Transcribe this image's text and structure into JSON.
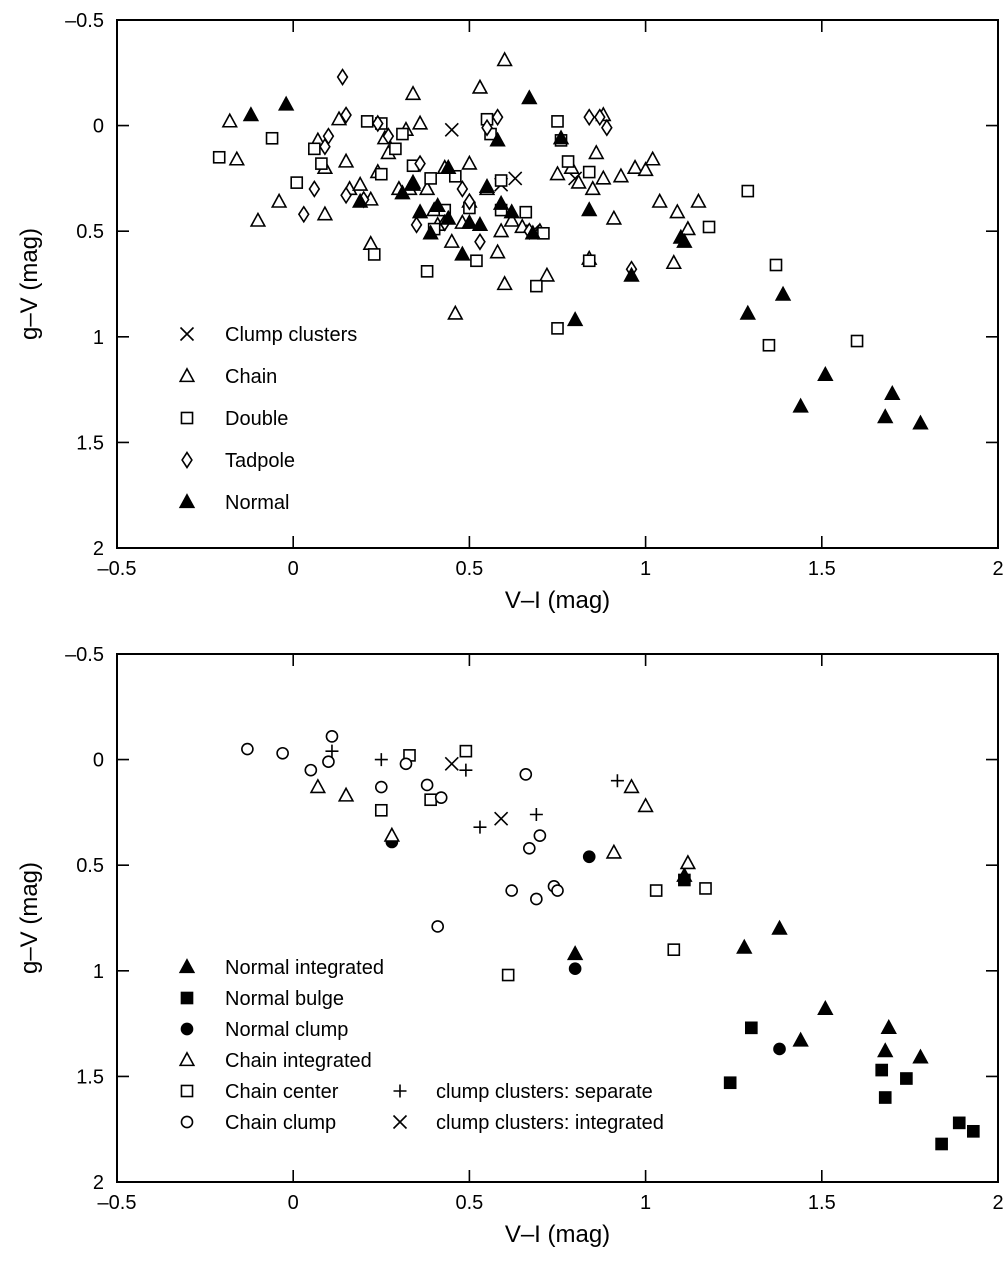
{
  "chart_data": [
    {
      "type": "scatter",
      "title": "",
      "xlabel": "V–I (mag)",
      "ylabel": "g–V (mag)",
      "xlim": [
        -0.5,
        2
      ],
      "ylim": [
        -0.5,
        2
      ],
      "y_inverted": true,
      "x_ticks": [
        "-0.5",
        "0",
        "0.5",
        "1",
        "1.5",
        "2"
      ],
      "y_ticks": [
        "-0.5",
        "0",
        "0.5",
        "1",
        "1.5",
        "2"
      ],
      "x_tick_labels": [
        "–0.5",
        "0",
        "0.5",
        "1",
        "1.5",
        "2"
      ],
      "y_tick_labels": [
        "–0.5",
        "0",
        "0.5",
        "1",
        "1.5",
        "2"
      ],
      "grid": false,
      "legend_position": "lower-left",
      "series": [
        {
          "name": "Clump clusters",
          "marker": "x",
          "points": [
            [
              0.45,
              0.02
            ],
            [
              0.59,
              0.28
            ],
            [
              0.63,
              0.25
            ],
            [
              0.68,
              0.5
            ],
            [
              0.8,
              0.25
            ]
          ]
        },
        {
          "name": "Chain",
          "marker": "triangle-open",
          "points": [
            [
              -0.18,
              -0.02
            ],
            [
              -0.16,
              0.16
            ],
            [
              -0.1,
              0.45
            ],
            [
              -0.04,
              0.36
            ],
            [
              0.07,
              0.07
            ],
            [
              0.09,
              0.2
            ],
            [
              0.09,
              0.42
            ],
            [
              0.13,
              -0.03
            ],
            [
              0.15,
              0.17
            ],
            [
              0.16,
              0.3
            ],
            [
              0.19,
              0.28
            ],
            [
              0.22,
              0.56
            ],
            [
              0.22,
              0.35
            ],
            [
              0.24,
              0.22
            ],
            [
              0.26,
              0.06
            ],
            [
              0.27,
              0.13
            ],
            [
              0.3,
              0.3
            ],
            [
              0.32,
              0.02
            ],
            [
              0.33,
              0.3
            ],
            [
              0.34,
              0.27
            ],
            [
              0.34,
              -0.15
            ],
            [
              0.36,
              -0.01
            ],
            [
              0.38,
              0.3
            ],
            [
              0.4,
              0.4
            ],
            [
              0.41,
              0.47
            ],
            [
              0.43,
              0.2
            ],
            [
              0.45,
              0.55
            ],
            [
              0.46,
              0.89
            ],
            [
              0.48,
              0.46
            ],
            [
              0.5,
              0.18
            ],
            [
              0.5,
              0.36
            ],
            [
              0.53,
              -0.18
            ],
            [
              0.55,
              0.3
            ],
            [
              0.58,
              0.6
            ],
            [
              0.59,
              0.5
            ],
            [
              0.6,
              0.75
            ],
            [
              0.6,
              -0.31
            ],
            [
              0.62,
              0.45
            ],
            [
              0.65,
              0.48
            ],
            [
              0.7,
              0.5
            ],
            [
              0.72,
              0.71
            ],
            [
              0.75,
              0.23
            ],
            [
              0.79,
              0.2
            ],
            [
              0.81,
              0.27
            ],
            [
              0.84,
              0.63
            ],
            [
              0.85,
              0.3
            ],
            [
              0.86,
              0.13
            ],
            [
              0.88,
              0.25
            ],
            [
              0.88,
              -0.05
            ],
            [
              0.91,
              0.44
            ],
            [
              0.93,
              0.24
            ],
            [
              0.97,
              0.2
            ],
            [
              1.0,
              0.21
            ],
            [
              1.02,
              0.16
            ],
            [
              1.04,
              0.36
            ],
            [
              1.08,
              0.65
            ],
            [
              1.09,
              0.41
            ],
            [
              1.12,
              0.49
            ],
            [
              1.15,
              0.36
            ]
          ]
        },
        {
          "name": "Double",
          "marker": "square-open",
          "points": [
            [
              -0.21,
              0.15
            ],
            [
              -0.06,
              0.06
            ],
            [
              0.01,
              0.27
            ],
            [
              0.06,
              0.11
            ],
            [
              0.08,
              0.18
            ],
            [
              0.21,
              -0.02
            ],
            [
              0.23,
              0.61
            ],
            [
              0.25,
              -0.01
            ],
            [
              0.25,
              0.23
            ],
            [
              0.29,
              0.11
            ],
            [
              0.31,
              0.04
            ],
            [
              0.34,
              0.19
            ],
            [
              0.38,
              0.69
            ],
            [
              0.39,
              0.25
            ],
            [
              0.4,
              0.49
            ],
            [
              0.43,
              0.4
            ],
            [
              0.46,
              0.24
            ],
            [
              0.5,
              0.39
            ],
            [
              0.52,
              0.64
            ],
            [
              0.55,
              -0.03
            ],
            [
              0.56,
              0.04
            ],
            [
              0.59,
              0.4
            ],
            [
              0.59,
              0.26
            ],
            [
              0.66,
              0.41
            ],
            [
              0.69,
              0.76
            ],
            [
              0.71,
              0.51
            ],
            [
              0.75,
              0.96
            ],
            [
              0.75,
              -0.02
            ],
            [
              0.76,
              0.07
            ],
            [
              0.78,
              0.17
            ],
            [
              0.84,
              0.22
            ],
            [
              0.84,
              0.64
            ],
            [
              1.18,
              0.48
            ],
            [
              1.29,
              0.31
            ],
            [
              1.35,
              1.04
            ],
            [
              1.37,
              0.66
            ],
            [
              1.6,
              1.02
            ]
          ]
        },
        {
          "name": "Tadpole",
          "marker": "diamond-open",
          "points": [
            [
              0.03,
              0.42
            ],
            [
              0.06,
              0.3
            ],
            [
              0.09,
              0.1
            ],
            [
              0.1,
              0.05
            ],
            [
              0.14,
              -0.23
            ],
            [
              0.15,
              -0.05
            ],
            [
              0.15,
              0.33
            ],
            [
              0.2,
              0.35
            ],
            [
              0.24,
              -0.01
            ],
            [
              0.27,
              0.05
            ],
            [
              0.35,
              0.47
            ],
            [
              0.36,
              0.18
            ],
            [
              0.43,
              0.46
            ],
            [
              0.48,
              0.3
            ],
            [
              0.5,
              0.36
            ],
            [
              0.53,
              0.55
            ],
            [
              0.55,
              0.01
            ],
            [
              0.58,
              -0.04
            ],
            [
              0.67,
              0.5
            ],
            [
              0.84,
              -0.04
            ],
            [
              0.87,
              -0.04
            ],
            [
              0.96,
              0.68
            ],
            [
              0.89,
              0.01
            ]
          ]
        },
        {
          "name": "Normal",
          "marker": "triangle-filled",
          "points": [
            [
              -0.12,
              -0.05
            ],
            [
              -0.02,
              -0.1
            ],
            [
              0.19,
              0.36
            ],
            [
              0.31,
              0.32
            ],
            [
              0.34,
              0.28
            ],
            [
              0.36,
              0.41
            ],
            [
              0.39,
              0.51
            ],
            [
              0.41,
              0.38
            ],
            [
              0.44,
              0.2
            ],
            [
              0.44,
              0.44
            ],
            [
              0.48,
              0.61
            ],
            [
              0.5,
              0.46
            ],
            [
              0.53,
              0.47
            ],
            [
              0.55,
              0.29
            ],
            [
              0.58,
              0.07
            ],
            [
              0.59,
              0.37
            ],
            [
              0.62,
              0.41
            ],
            [
              0.67,
              -0.13
            ],
            [
              0.68,
              0.51
            ],
            [
              0.76,
              0.06
            ],
            [
              0.8,
              0.92
            ],
            [
              0.84,
              0.4
            ],
            [
              0.96,
              0.71
            ],
            [
              1.1,
              0.53
            ],
            [
              1.11,
              0.55
            ],
            [
              1.29,
              0.89
            ],
            [
              1.39,
              0.8
            ],
            [
              1.44,
              1.33
            ],
            [
              1.51,
              1.18
            ],
            [
              1.68,
              1.38
            ],
            [
              1.7,
              1.27
            ],
            [
              1.78,
              1.41
            ]
          ]
        }
      ]
    },
    {
      "type": "scatter",
      "title": "",
      "xlabel": "V–I (mag)",
      "ylabel": "g–V (mag)",
      "xlim": [
        -0.5,
        2
      ],
      "ylim": [
        -0.5,
        2
      ],
      "y_inverted": true,
      "x_ticks": [
        "-0.5",
        "0",
        "0.5",
        "1",
        "1.5",
        "2"
      ],
      "y_ticks": [
        "-0.5",
        "0",
        "0.5",
        "1",
        "1.5",
        "2"
      ],
      "x_tick_labels": [
        "–0.5",
        "0",
        "0.5",
        "1",
        "1.5",
        "2"
      ],
      "y_tick_labels": [
        "–0.5",
        "0",
        "0.5",
        "1",
        "1.5",
        "2"
      ],
      "grid": false,
      "legend_position": "lower-left",
      "series": [
        {
          "name": "Normal integrated",
          "marker": "triangle-filled",
          "points": [
            [
              0.8,
              0.92
            ],
            [
              1.28,
              0.89
            ],
            [
              1.38,
              0.8
            ],
            [
              1.44,
              1.33
            ],
            [
              1.51,
              1.18
            ],
            [
              1.68,
              1.38
            ],
            [
              1.69,
              1.27
            ],
            [
              1.78,
              1.41
            ],
            [
              1.11,
              0.55
            ]
          ]
        },
        {
          "name": "Normal bulge",
          "marker": "square-filled",
          "points": [
            [
              1.11,
              0.57
            ],
            [
              1.24,
              1.53
            ],
            [
              1.3,
              1.27
            ],
            [
              1.67,
              1.47
            ],
            [
              1.68,
              1.6
            ],
            [
              1.74,
              1.51
            ],
            [
              1.84,
              1.82
            ],
            [
              1.89,
              1.72
            ],
            [
              1.93,
              1.76
            ]
          ]
        },
        {
          "name": "Normal clump",
          "marker": "circle-filled",
          "points": [
            [
              0.28,
              0.39
            ],
            [
              0.84,
              0.46
            ],
            [
              0.8,
              0.99
            ],
            [
              1.38,
              1.37
            ]
          ]
        },
        {
          "name": "Chain integrated",
          "marker": "triangle-open",
          "points": [
            [
              0.07,
              0.13
            ],
            [
              0.15,
              0.17
            ],
            [
              0.28,
              0.36
            ],
            [
              0.91,
              0.44
            ],
            [
              0.96,
              0.13
            ],
            [
              1.0,
              0.22
            ],
            [
              1.12,
              0.49
            ]
          ]
        },
        {
          "name": "Chain center",
          "marker": "square-open",
          "points": [
            [
              0.25,
              0.24
            ],
            [
              0.33,
              -0.02
            ],
            [
              0.39,
              0.19
            ],
            [
              0.49,
              -0.04
            ],
            [
              0.61,
              1.02
            ],
            [
              1.03,
              0.62
            ],
            [
              1.08,
              0.9
            ],
            [
              1.17,
              0.61
            ]
          ]
        },
        {
          "name": "Chain clump",
          "marker": "circle-open",
          "points": [
            [
              -0.13,
              -0.05
            ],
            [
              -0.03,
              -0.03
            ],
            [
              0.05,
              0.05
            ],
            [
              0.1,
              0.01
            ],
            [
              0.11,
              -0.11
            ],
            [
              0.25,
              0.13
            ],
            [
              0.32,
              0.02
            ],
            [
              0.38,
              0.12
            ],
            [
              0.42,
              0.18
            ],
            [
              0.41,
              0.79
            ],
            [
              0.62,
              0.62
            ],
            [
              0.67,
              0.42
            ],
            [
              0.69,
              0.66
            ],
            [
              0.7,
              0.36
            ],
            [
              0.66,
              0.07
            ],
            [
              0.74,
              0.6
            ],
            [
              0.75,
              0.62
            ]
          ]
        },
        {
          "name": "clump clusters: separate",
          "marker": "plus",
          "points": [
            [
              0.11,
              -0.04
            ],
            [
              0.25,
              0.0
            ],
            [
              0.49,
              0.05
            ],
            [
              0.53,
              0.32
            ],
            [
              0.69,
              0.26
            ],
            [
              0.92,
              0.1
            ]
          ]
        },
        {
          "name": "clump clusters: integrated",
          "marker": "x",
          "points": [
            [
              0.45,
              0.02
            ],
            [
              0.59,
              0.28
            ]
          ]
        }
      ]
    }
  ]
}
